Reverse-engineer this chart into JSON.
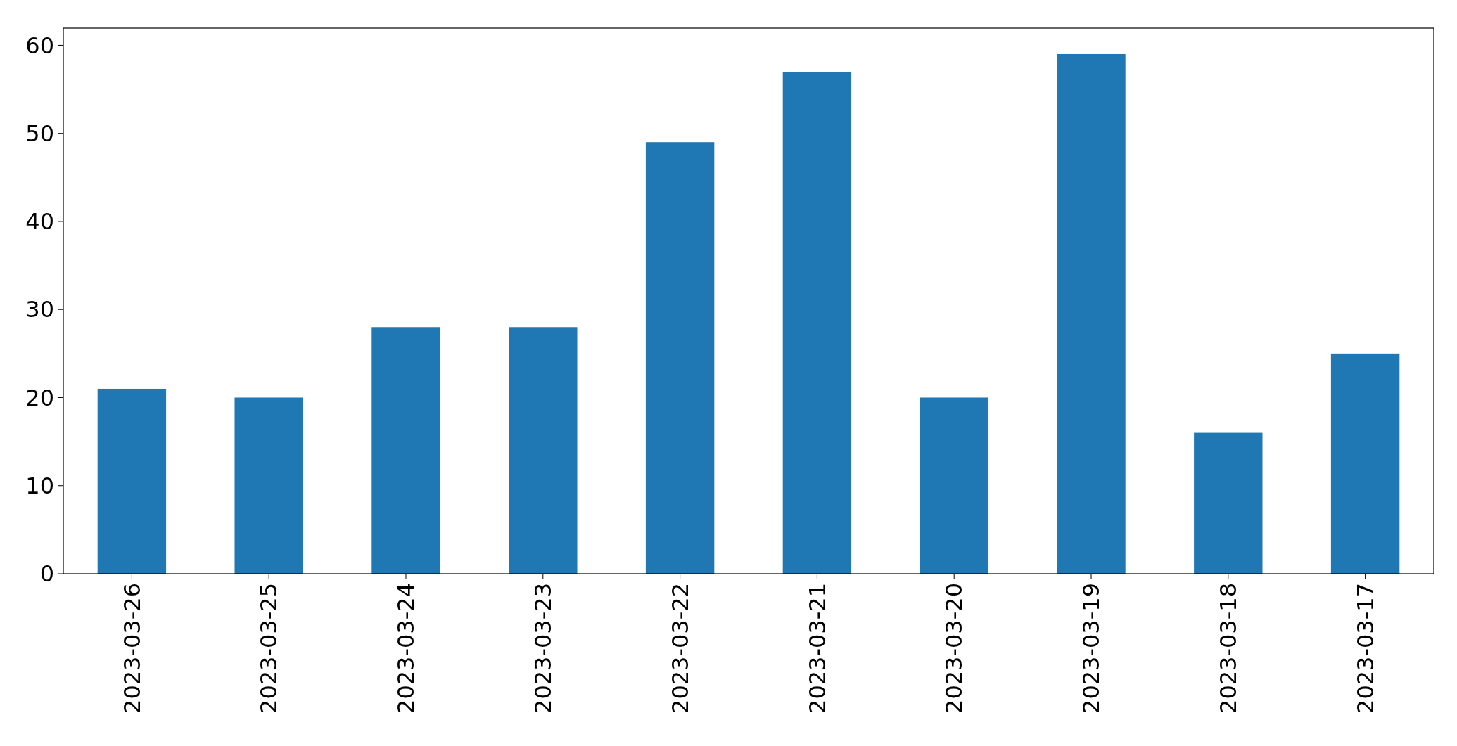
{
  "chart_data": {
    "type": "bar",
    "categories": [
      "2023-03-26",
      "2023-03-25",
      "2023-03-24",
      "2023-03-23",
      "2023-03-22",
      "2023-03-21",
      "2023-03-20",
      "2023-03-19",
      "2023-03-18",
      "2023-03-17"
    ],
    "values": [
      21,
      20,
      28,
      28,
      49,
      57,
      20,
      59,
      16,
      25
    ],
    "color": "#1f77b4",
    "ylim": [
      0,
      61.95
    ],
    "yticks": [
      0,
      10,
      20,
      30,
      40,
      50,
      60
    ]
  }
}
